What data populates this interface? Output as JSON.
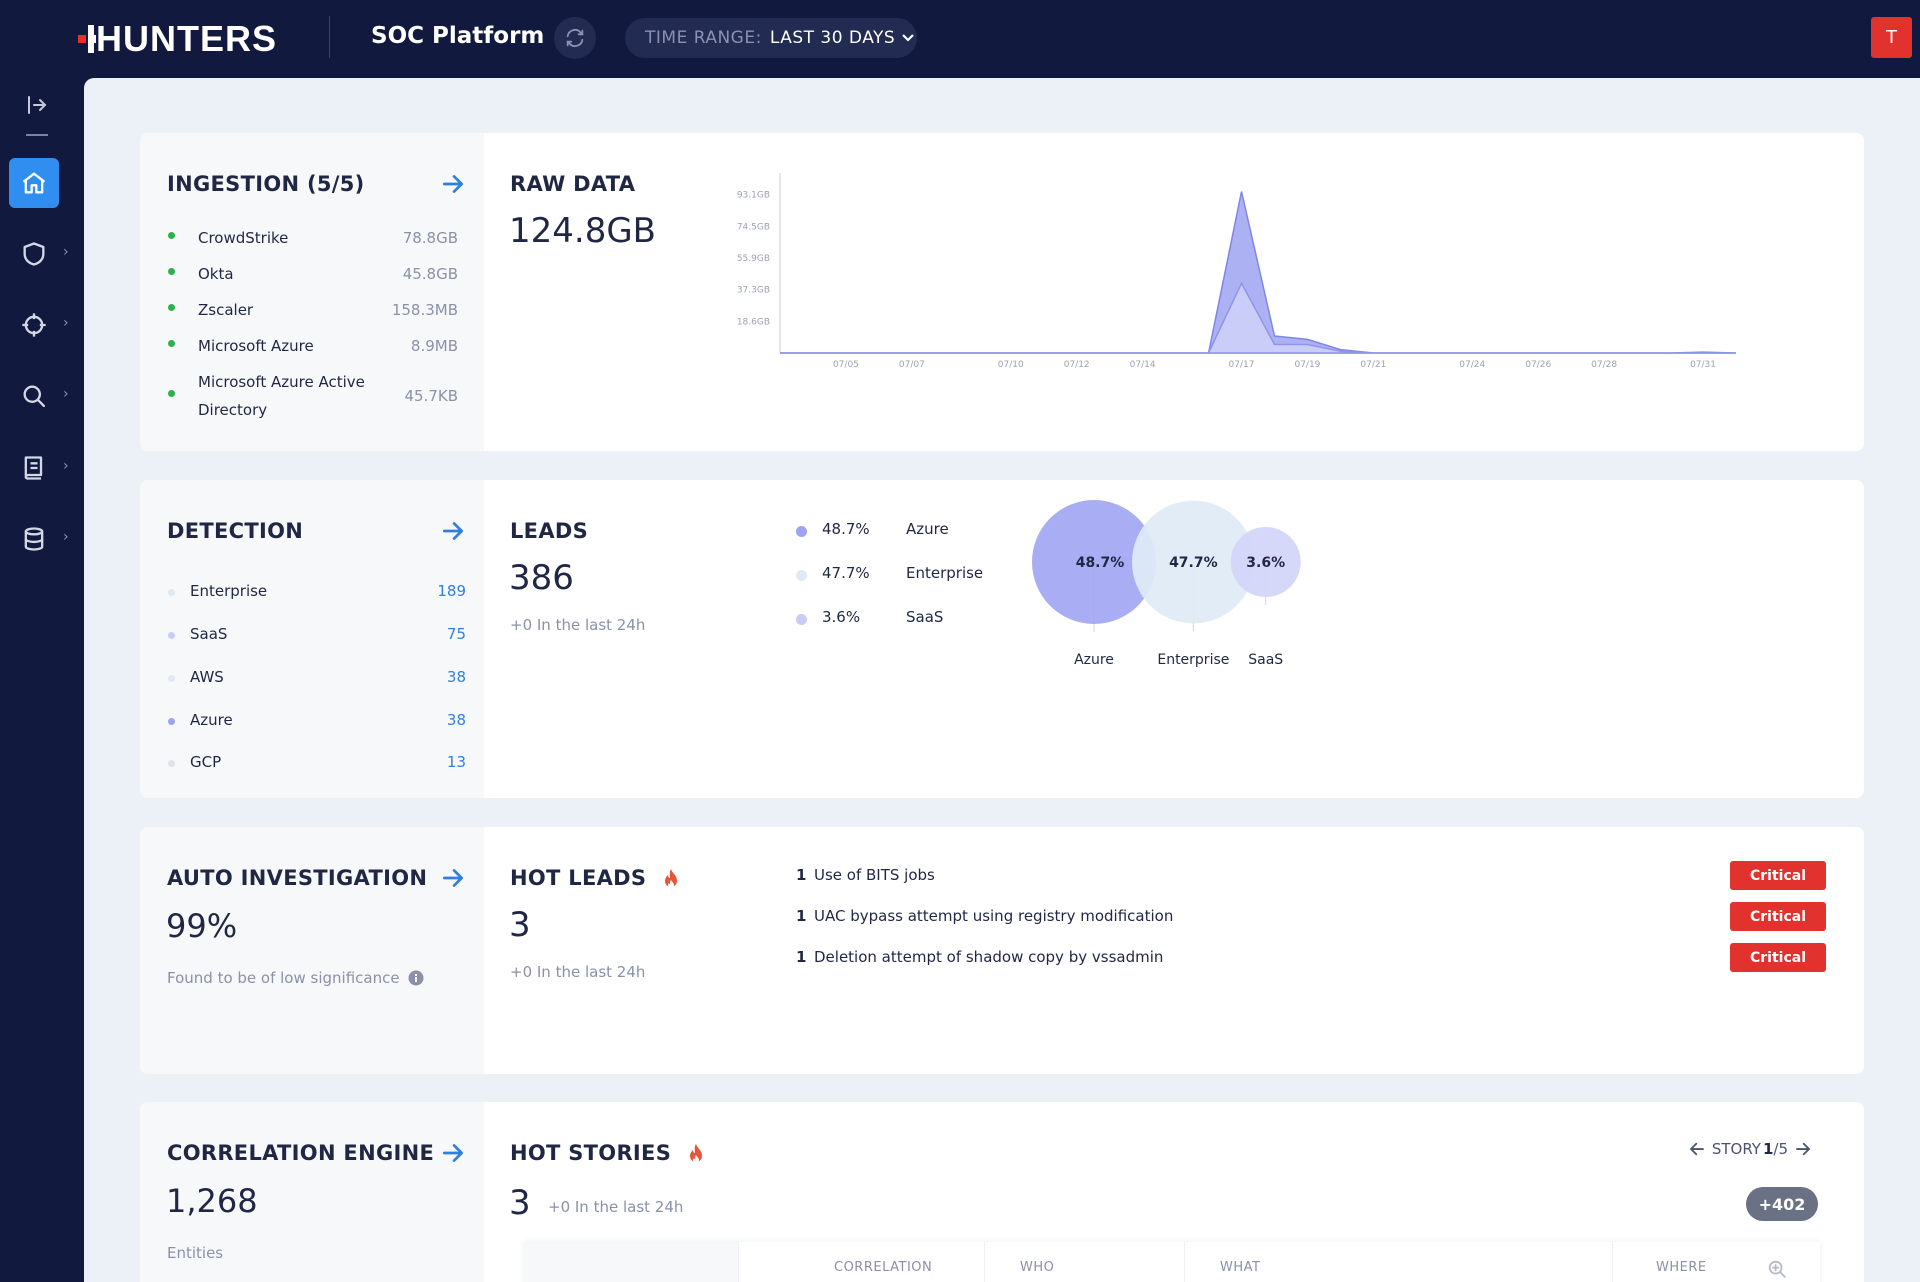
{
  "header": {
    "logo": "HUNTERS",
    "app_title": "SOC Platform",
    "time_range_label": "TIME RANGE:",
    "time_range_value": "LAST 30 DAYS",
    "avatar_initial": "T"
  },
  "colors": {
    "navy": "#111a3e",
    "accent_blue": "#2f8ef0",
    "critical_red": "#e2322e",
    "ingestion_green": "#2bb24c",
    "chart_purple": "#8e94ee",
    "chart_light": "#c9ccf7"
  },
  "sidebar": {
    "items": [
      {
        "icon": "home-icon",
        "active": true
      },
      {
        "icon": "shield-icon",
        "active": false
      },
      {
        "icon": "crosshair-icon",
        "active": false
      },
      {
        "icon": "search-icon",
        "active": false
      },
      {
        "icon": "book-icon",
        "active": false
      },
      {
        "icon": "database-icon",
        "active": false
      }
    ]
  },
  "ingestion": {
    "title": "INGESTION (5/5)",
    "items": [
      {
        "name": "CrowdStrike",
        "value": "78.8GB"
      },
      {
        "name": "Okta",
        "value": "45.8GB"
      },
      {
        "name": "Zscaler",
        "value": "158.3MB"
      },
      {
        "name": "Microsoft Azure",
        "value": "8.9MB"
      },
      {
        "name": "Microsoft Azure Active Directory",
        "value": "45.7KB"
      }
    ]
  },
  "raw_data": {
    "title": "RAW DATA",
    "value": "124.8GB"
  },
  "chart_data": {
    "type": "area",
    "x": [
      "07/03",
      "07/04",
      "07/05",
      "07/06",
      "07/07",
      "07/08",
      "07/09",
      "07/10",
      "07/11",
      "07/12",
      "07/13",
      "07/14",
      "07/15",
      "07/16",
      "07/17",
      "07/18",
      "07/19",
      "07/20",
      "07/21",
      "07/22",
      "07/23",
      "07/24",
      "07/25",
      "07/26",
      "07/27",
      "07/28",
      "07/29",
      "07/30",
      "07/31",
      "08/01"
    ],
    "x_tick_labels": [
      "07/05",
      "07/07",
      "07/10",
      "07/12",
      "07/14",
      "07/17",
      "07/19",
      "07/21",
      "07/24",
      "07/26",
      "07/28",
      "07/31"
    ],
    "y_tick_labels": [
      "93.1GB",
      "74.5GB",
      "55.9GB",
      "37.3GB",
      "18.6GB"
    ],
    "y_ticks": [
      93.1,
      74.5,
      55.9,
      37.3,
      18.6
    ],
    "ylim": [
      0,
      100
    ],
    "series": [
      {
        "values": [
          0,
          0,
          0,
          0,
          0,
          0,
          0,
          0,
          0,
          0,
          0,
          0,
          0,
          0,
          95,
          10,
          8,
          2,
          0,
          0,
          0,
          0,
          0,
          0,
          0,
          0,
          0,
          0,
          0.5,
          0
        ]
      },
      {
        "values": [
          0,
          0,
          0,
          0,
          0,
          0,
          0,
          0,
          0,
          0,
          0,
          0,
          0,
          0,
          41,
          5,
          5,
          1,
          0,
          0,
          0,
          0,
          0,
          0,
          0,
          0,
          0,
          0,
          0,
          0
        ]
      }
    ]
  },
  "detection": {
    "title": "DETECTION",
    "items": [
      {
        "name": "Enterprise",
        "value": "189",
        "color": "#dfe9f5"
      },
      {
        "name": "SaaS",
        "value": "75",
        "color": "#c9ccf7"
      },
      {
        "name": "AWS",
        "value": "38",
        "color": "#dfe9f5"
      },
      {
        "name": "Azure",
        "value": "38",
        "color": "#9ea3f2"
      },
      {
        "name": "GCP",
        "value": "13",
        "color": "#dfe3ea"
      }
    ]
  },
  "leads": {
    "title": "LEADS",
    "value": "386",
    "sub": "+0 In the last 24h",
    "legend": [
      {
        "pct": "48.7%",
        "name": "Azure",
        "color": "#9ea3f2"
      },
      {
        "pct": "47.7%",
        "name": "Enterprise",
        "color": "#dfe9f5"
      },
      {
        "pct": "3.6%",
        "name": "SaaS",
        "color": "#c9ccf7"
      }
    ],
    "bubbles": [
      {
        "label": "48.7%",
        "name": "Azure",
        "value": 48.7,
        "color": "#a1a6f3"
      },
      {
        "label": "47.7%",
        "name": "Enterprise",
        "value": 47.7,
        "color": "#dfeaf6"
      },
      {
        "label": "3.6%",
        "name": "SaaS",
        "value": 3.6,
        "color": "#d2d5f8"
      }
    ]
  },
  "auto_investigation": {
    "title": "AUTO INVESTIGATION",
    "value": "99%",
    "sub": "Found to be of low significance"
  },
  "hot_leads": {
    "title": "HOT LEADS",
    "value": "3",
    "sub": "+0 In the last 24h",
    "items": [
      {
        "count": "1",
        "name": "Use of BITS jobs",
        "severity": "Critical"
      },
      {
        "count": "1",
        "name": "UAC bypass attempt using registry modification",
        "severity": "Critical"
      },
      {
        "count": "1",
        "name": "Deletion attempt of shadow copy by vssadmin",
        "severity": "Critical"
      }
    ]
  },
  "correlation": {
    "title": "CORRELATION ENGINE",
    "value": "1,268",
    "sub": "Entities"
  },
  "hot_stories": {
    "title": "HOT STORIES",
    "value": "3",
    "sub": "+0 In the last 24h",
    "story_label": "STORY",
    "story_current": "1",
    "story_total": "/5",
    "more": "+402",
    "columns": [
      "CORRELATION",
      "WHO",
      "WHAT",
      "WHERE"
    ]
  }
}
